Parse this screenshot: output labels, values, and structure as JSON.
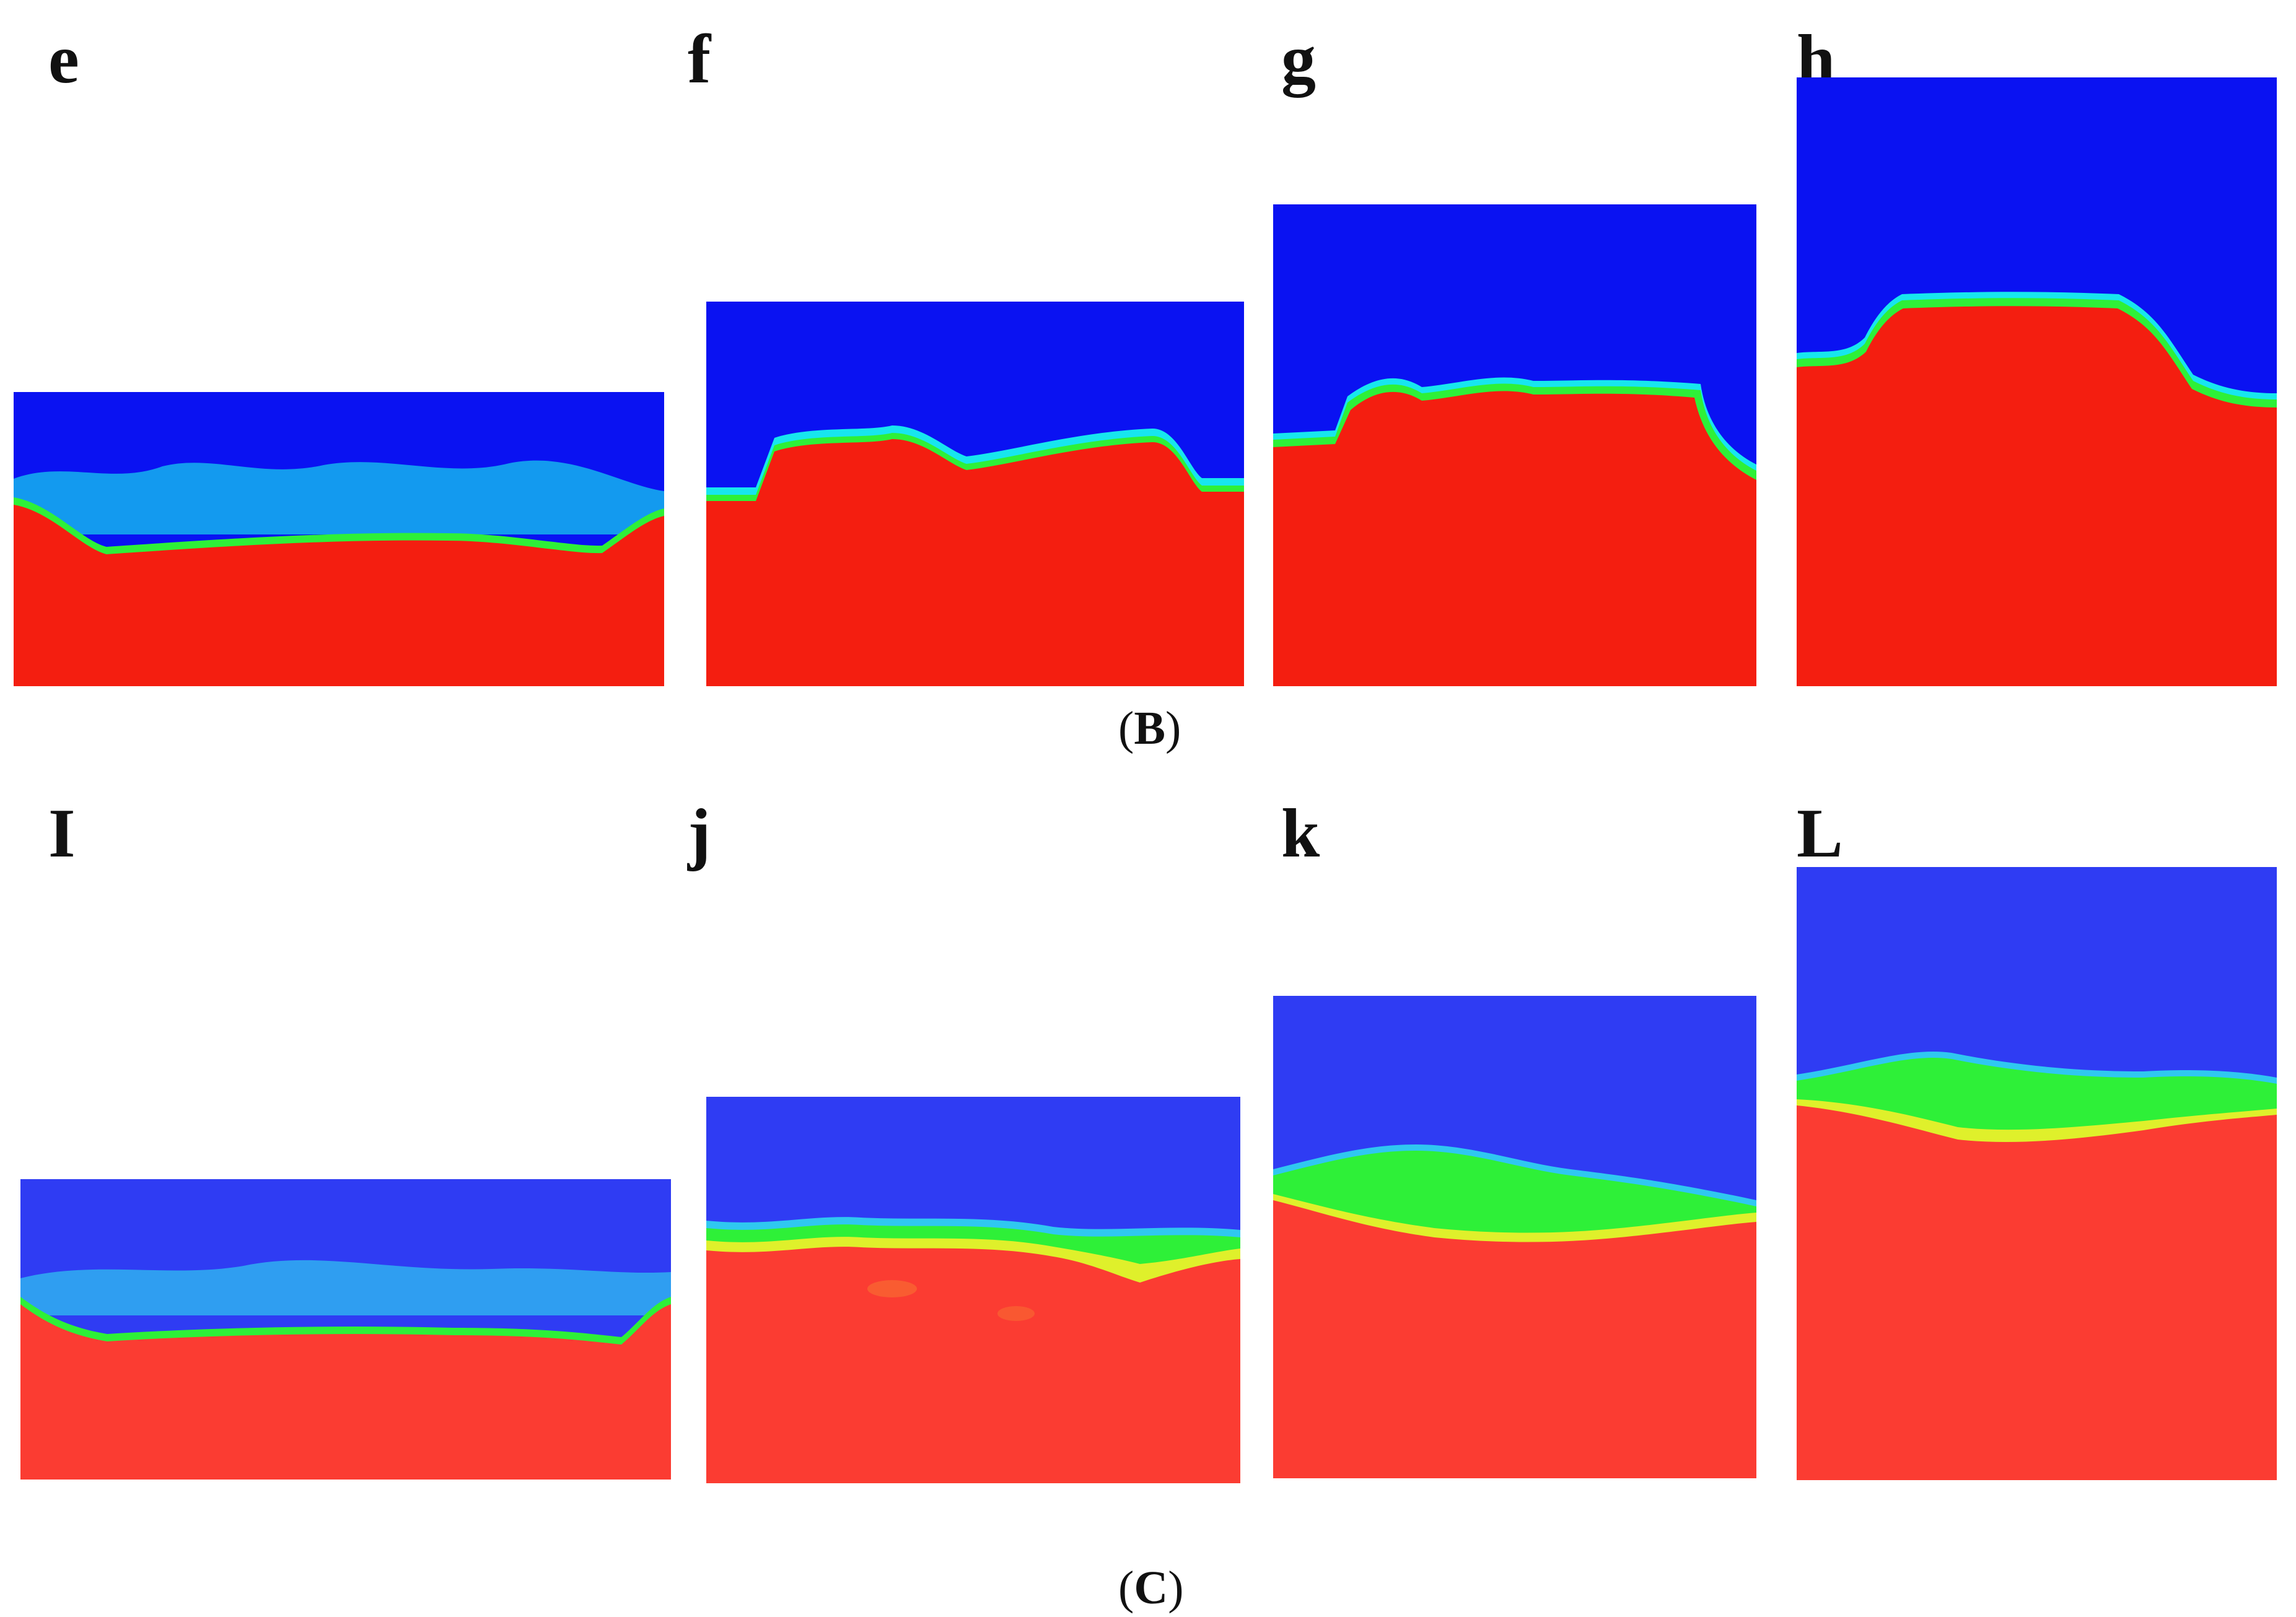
{
  "figure": {
    "row_b": {
      "caption": "B",
      "panels": [
        {
          "label": "e",
          "fluid_colors": {
            "upper": "#0a12f2",
            "lower": "#f41e10"
          }
        },
        {
          "label": "f",
          "fluid_colors": {
            "upper": "#0a12f2",
            "lower": "#f41e10"
          }
        },
        {
          "label": "g",
          "fluid_colors": {
            "upper": "#0a12f2",
            "lower": "#f41e10"
          }
        },
        {
          "label": "h",
          "fluid_colors": {
            "upper": "#0a12f2",
            "lower": "#f41e10"
          }
        }
      ]
    },
    "row_c": {
      "caption": "C",
      "panels": [
        {
          "label": "I",
          "fluid_colors": {
            "upper": "#2f3cf3",
            "lower": "#fb3c32"
          }
        },
        {
          "label": "j",
          "fluid_colors": {
            "upper": "#2f3cf3",
            "lower": "#fb3c32"
          }
        },
        {
          "label": "k",
          "fluid_colors": {
            "upper": "#2f3cf3",
            "lower": "#fb3c32"
          }
        },
        {
          "label": "L",
          "fluid_colors": {
            "upper": "#2f3cf3",
            "lower": "#fb3c32"
          }
        }
      ]
    },
    "interface_colors": [
      "#17e6ee",
      "#2ef038",
      "#f3ef2a"
    ]
  }
}
